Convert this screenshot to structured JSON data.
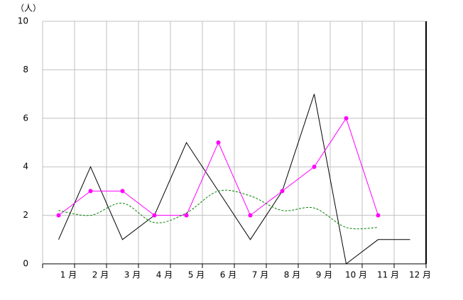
{
  "chart_data": {
    "type": "line",
    "y_label": "（人）",
    "categories": [
      "1 月",
      "2 月",
      "3 月",
      "4 月",
      "5 月",
      "6 月",
      "7 月",
      "8 月",
      "9 月",
      "10 月",
      "11 月",
      "12 月"
    ],
    "series": [
      {
        "color": "#000000",
        "values": [
          1,
          4,
          1,
          2,
          5,
          3,
          1,
          3,
          7,
          0,
          1,
          1
        ]
      },
      {
        "color": "#ff00ff",
        "marker": "circle",
        "values": [
          2,
          3,
          3,
          2,
          2,
          5,
          2,
          3,
          4,
          6,
          2,
          null
        ]
      },
      {
        "color": "#008000",
        "dashed": true,
        "smooth": true,
        "values": [
          2.2,
          2.0,
          2.5,
          1.7,
          2.1,
          3.0,
          2.8,
          2.2,
          2.3,
          1.5,
          1.5,
          null
        ]
      }
    ],
    "ylim": [
      0,
      10
    ],
    "yticks": [
      0,
      2,
      4,
      6,
      8,
      10
    ],
    "grid": true
  }
}
